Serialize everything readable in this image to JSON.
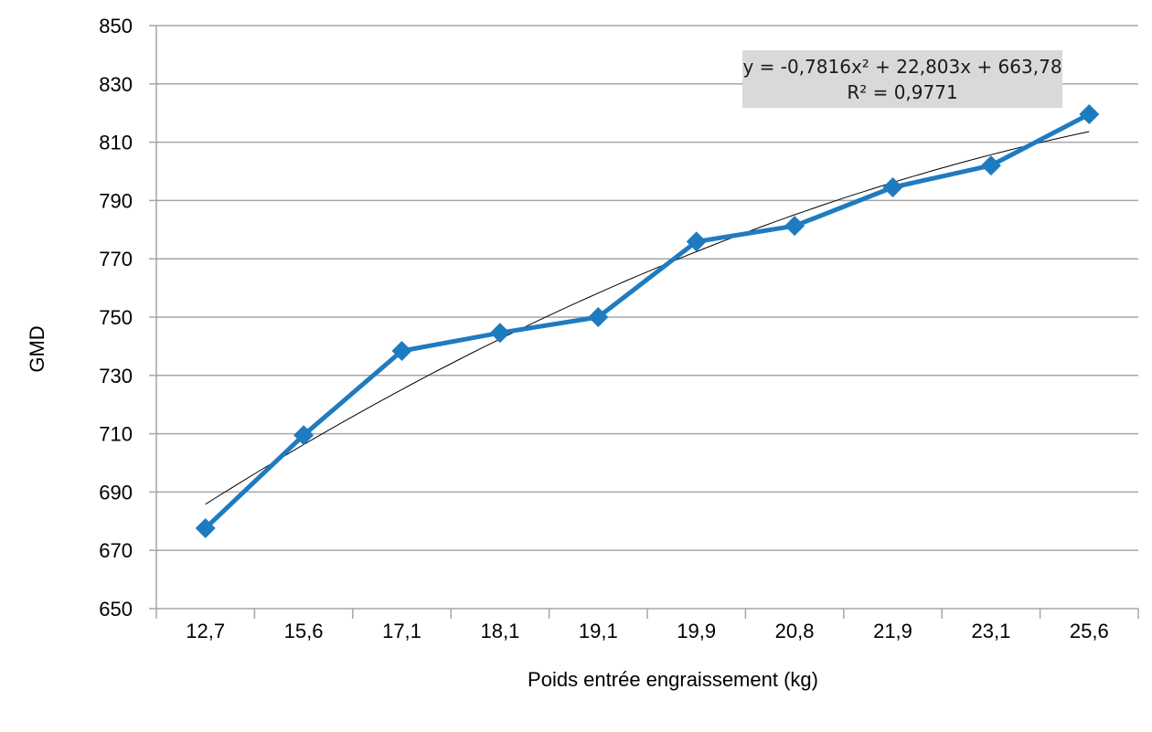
{
  "chart_data": {
    "type": "line",
    "title": "",
    "xlabel": "Poids entrée engraissement (kg)",
    "ylabel": "GMD",
    "categories": [
      "12,7",
      "15,6",
      "17,1",
      "18,1",
      "19,1",
      "19,9",
      "20,8",
      "21,9",
      "23,1",
      "25,6"
    ],
    "series": [
      {
        "name": "GMD",
        "color": "#1f7bc0",
        "marker": "diamond",
        "values": [
          677.6,
          709.5,
          738.4,
          744.6,
          750.0,
          775.9,
          781.3,
          794.5,
          802.0,
          819.6
        ]
      }
    ],
    "trendline": {
      "type": "polynomial",
      "order": 2,
      "color": "#000000",
      "a": -0.7816,
      "b": 22.803,
      "c": 663.78,
      "equation_label": "y = -0,7816x² + 22,803x + 663,78",
      "r2_label": "R² = 0,9771"
    },
    "ylim": [
      650,
      850
    ],
    "yticks": [
      650,
      670,
      690,
      710,
      730,
      750,
      770,
      790,
      810,
      830,
      850
    ],
    "grid": true,
    "legend": "none"
  },
  "colors": {
    "series": "#1f7bc0",
    "grid": "#a6a6a6",
    "axis": "#a6a6a6",
    "equation_box": "#d9d9d9"
  }
}
